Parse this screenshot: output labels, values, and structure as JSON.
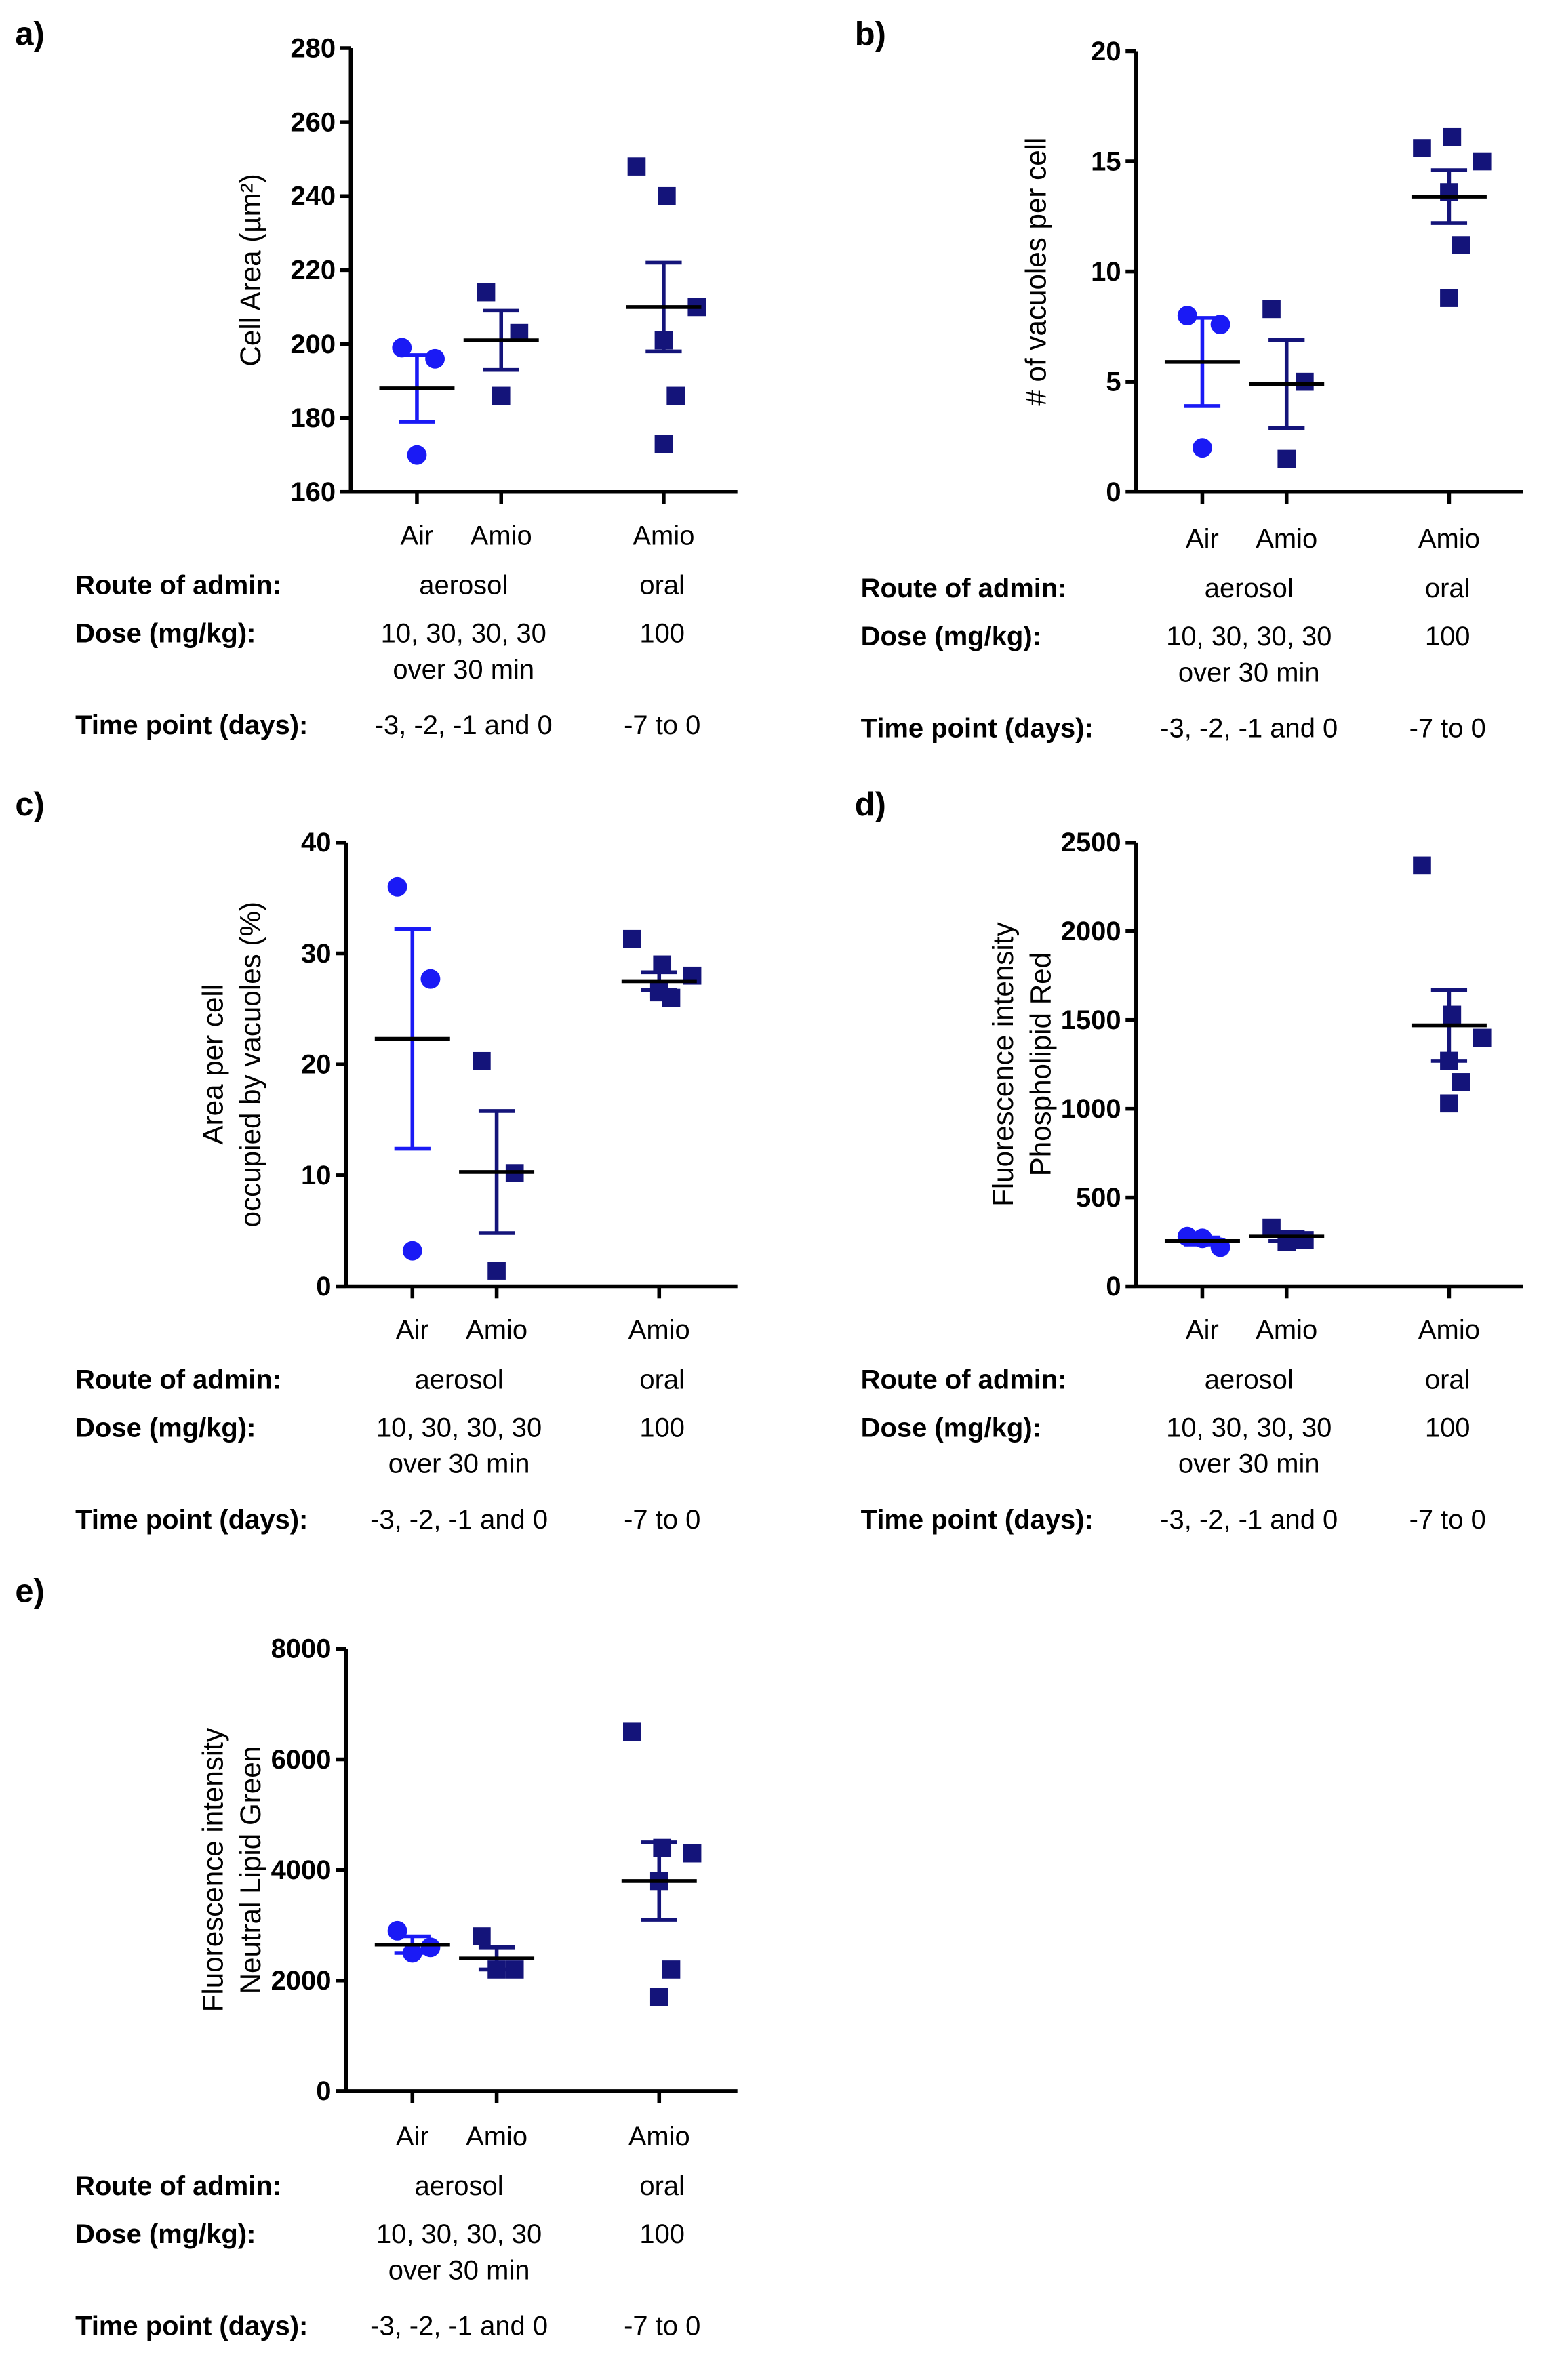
{
  "colors": {
    "air": "#1a1af5",
    "amio": "#14147a",
    "mean": "#000000"
  },
  "table_labels": {
    "route": "Route of admin:",
    "dose": "Dose (mg/kg):",
    "time": "Time point (days):"
  },
  "table_values": {
    "route_aerosol": "aerosol",
    "route_oral": "oral",
    "dose_aerosol": "10, 30, 30, 30",
    "dose_aerosol_2": "over 30 min",
    "dose_oral": "100",
    "time_aerosol": "-3, -2, -1 and 0",
    "time_oral": "-7 to 0"
  },
  "chart_data": [
    {
      "panel": "a)",
      "type": "scatter",
      "ylabel": [
        "Cell  Area (µm²)"
      ],
      "ylim": [
        160,
        280
      ],
      "yticks": [
        160,
        180,
        200,
        220,
        240,
        260,
        280
      ],
      "categories": [
        "Air",
        "Amio",
        "Amio"
      ],
      "groups": [
        {
          "name": "Air",
          "marker": "circle",
          "values": [
            199,
            196,
            170
          ],
          "mean": 188,
          "sem": 9
        },
        {
          "name": "Amio aerosol",
          "marker": "square",
          "values": [
            214,
            203,
            186
          ],
          "mean": 201,
          "sem": 8
        },
        {
          "name": "Amio oral",
          "marker": "square",
          "values": [
            248,
            240,
            210,
            201,
            186,
            173
          ],
          "mean": 210,
          "sem": 12
        }
      ]
    },
    {
      "panel": "b)",
      "type": "scatter",
      "ylabel": [
        "# of vacuoles per cell"
      ],
      "ylim": [
        0,
        20
      ],
      "yticks": [
        0,
        5,
        10,
        15,
        20
      ],
      "categories": [
        "Air",
        "Amio",
        "Amio"
      ],
      "groups": [
        {
          "name": "Air",
          "marker": "circle",
          "values": [
            8.0,
            7.6,
            2.0
          ],
          "mean": 5.9,
          "sem": 2.0
        },
        {
          "name": "Amio aerosol",
          "marker": "square",
          "values": [
            8.3,
            5.0,
            1.5
          ],
          "mean": 4.9,
          "sem": 2.0
        },
        {
          "name": "Amio oral",
          "marker": "square",
          "values": [
            15.6,
            16.1,
            15.0,
            13.6,
            11.2,
            8.8
          ],
          "mean": 13.4,
          "sem": 1.2
        }
      ]
    },
    {
      "panel": "c)",
      "type": "scatter",
      "ylabel": [
        "Area per cell",
        "occupied by vacuoles (%)"
      ],
      "ylim": [
        0,
        40
      ],
      "yticks": [
        0,
        10,
        20,
        30,
        40
      ],
      "categories": [
        "Air",
        "Amio",
        "Amio"
      ],
      "groups": [
        {
          "name": "Air",
          "marker": "circle",
          "values": [
            36.0,
            27.7,
            3.2
          ],
          "mean": 22.3,
          "sem": 9.9
        },
        {
          "name": "Amio aerosol",
          "marker": "square",
          "values": [
            20.3,
            10.2,
            1.4
          ],
          "mean": 10.3,
          "sem": 5.5
        },
        {
          "name": "Amio oral",
          "marker": "square",
          "values": [
            31.3,
            29.0,
            28.0,
            26.8,
            26.0,
            26.5
          ],
          "mean": 27.5,
          "sem": 0.8
        }
      ]
    },
    {
      "panel": "d)",
      "type": "scatter",
      "ylabel": [
        "Fluorescence intensity",
        "Phospholipid Red"
      ],
      "ylim": [
        0,
        2500
      ],
      "yticks": [
        0,
        500,
        1000,
        1500,
        2000,
        2500
      ],
      "categories": [
        "Air",
        "Amio",
        "Amio"
      ],
      "groups": [
        {
          "name": "Air",
          "marker": "circle",
          "values": [
            280,
            220,
            270
          ],
          "mean": 255,
          "sem": 20
        },
        {
          "name": "Amio aerosol",
          "marker": "square",
          "values": [
            330,
            260,
            250
          ],
          "mean": 280,
          "sem": 25
        },
        {
          "name": "Amio oral",
          "marker": "square",
          "values": [
            2370,
            1530,
            1400,
            1270,
            1150,
            1030
          ],
          "mean": 1470,
          "sem": 200
        }
      ]
    },
    {
      "panel": "e)",
      "type": "scatter",
      "ylabel": [
        "Fluorescence intensity",
        "Neutral Lipid Green"
      ],
      "ylim": [
        0,
        8000
      ],
      "yticks": [
        0,
        2000,
        4000,
        6000,
        8000
      ],
      "categories": [
        "Air",
        "Amio",
        "Amio"
      ],
      "groups": [
        {
          "name": "Air",
          "marker": "circle",
          "values": [
            2900,
            2600,
            2500
          ],
          "mean": 2650,
          "sem": 150
        },
        {
          "name": "Amio aerosol",
          "marker": "square",
          "values": [
            2800,
            2200,
            2200
          ],
          "mean": 2400,
          "sem": 200
        },
        {
          "name": "Amio oral",
          "marker": "square",
          "values": [
            6500,
            4400,
            4300,
            3800,
            2200,
            1700
          ],
          "mean": 3800,
          "sem": 700
        }
      ]
    }
  ]
}
